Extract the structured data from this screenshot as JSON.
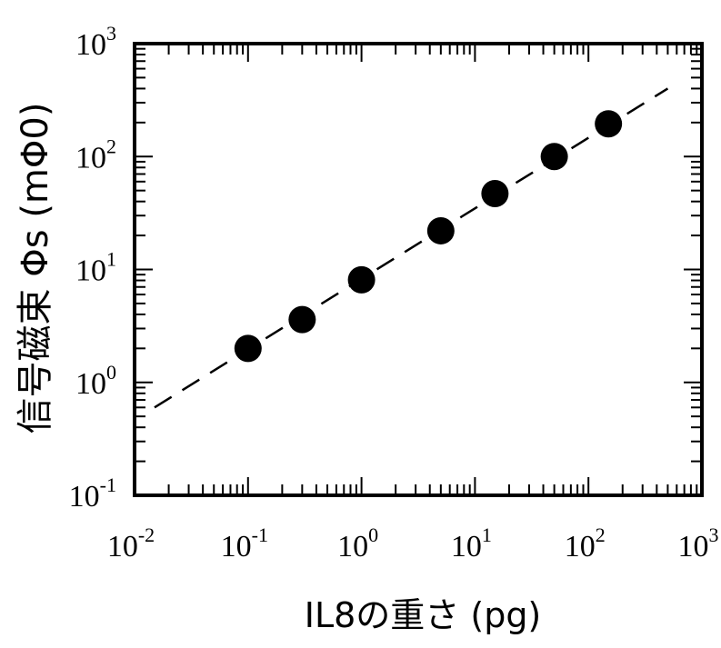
{
  "chart_data": {
    "type": "scatter",
    "xlabel": "IL8の重さ (pg)",
    "ylabel": "信号磁束 Φs (mΦ0)",
    "x_scale": "log",
    "y_scale": "log",
    "xlim": [
      0.01,
      1000
    ],
    "ylim": [
      0.1,
      1000
    ],
    "x_ticks": [
      {
        "base": "10",
        "exp": "-2"
      },
      {
        "base": "10",
        "exp": "-1"
      },
      {
        "base": "10",
        "exp": "0"
      },
      {
        "base": "10",
        "exp": "1"
      },
      {
        "base": "10",
        "exp": "2"
      },
      {
        "base": "10",
        "exp": "3"
      }
    ],
    "y_ticks": [
      {
        "base": "10",
        "exp": "-1"
      },
      {
        "base": "10",
        "exp": "0"
      },
      {
        "base": "10",
        "exp": "1"
      },
      {
        "base": "10",
        "exp": "2"
      },
      {
        "base": "10",
        "exp": "3"
      }
    ],
    "series": [
      {
        "type": "scatter",
        "x": [
          0.1,
          0.3,
          1.0,
          5.0,
          15,
          50,
          150
        ],
        "y": [
          2.0,
          3.6,
          8.1,
          22,
          47,
          100,
          195
        ]
      },
      {
        "type": "line",
        "style": "dashed",
        "x": [
          0.015,
          500
        ],
        "y": [
          0.6,
          400
        ]
      }
    ],
    "grid": false
  }
}
